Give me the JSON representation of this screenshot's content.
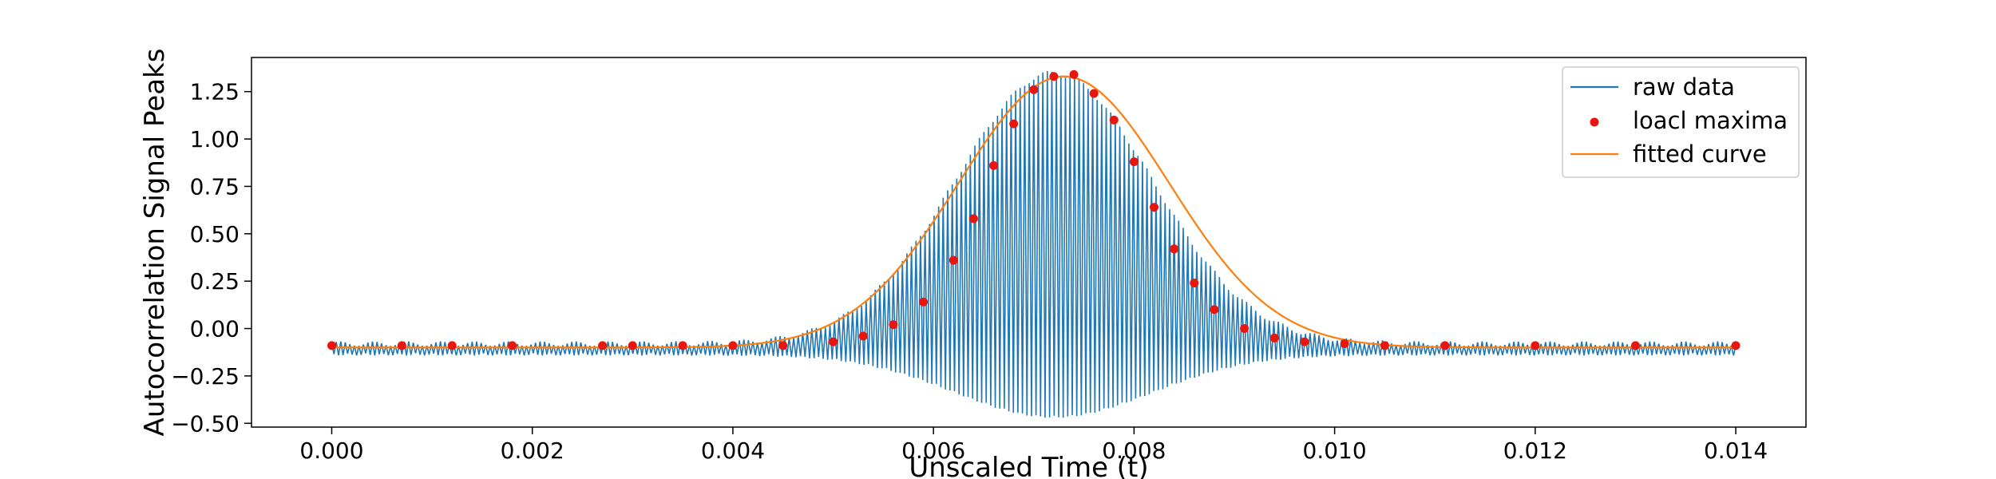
{
  "chart_data": {
    "type": "line",
    "title": "",
    "xlabel": "Unscaled Time (t)",
    "ylabel": "Autocorrelation Signal Peaks",
    "xlim": [
      -0.0008,
      0.0147
    ],
    "ylim": [
      -0.52,
      1.43
    ],
    "xticks": [
      0.0,
      0.002,
      0.004,
      0.006,
      0.008,
      0.01,
      0.012,
      0.014
    ],
    "xtick_labels": [
      "0.000",
      "0.002",
      "0.004",
      "0.006",
      "0.008",
      "0.010",
      "0.012",
      "0.014"
    ],
    "yticks": [
      -0.5,
      -0.25,
      0.0,
      0.25,
      0.5,
      0.75,
      1.0,
      1.25
    ],
    "ytick_labels": [
      "−0.50",
      "−0.25",
      "0.00",
      "0.25",
      "0.50",
      "0.75",
      "1.00",
      "1.25"
    ],
    "grid": false,
    "legend_position": "top-right",
    "series": [
      {
        "name": "raw data",
        "kind": "line",
        "color": "#1f77b4",
        "baseline": -0.1,
        "envelope_center": 0.0072,
        "upper_peak": 1.33,
        "lower_peak": -0.43,
        "t_start": 0.0,
        "t_end": 0.014
      },
      {
        "name": "loacl maxima",
        "kind": "scatter",
        "color": "#e8170e",
        "points": [
          [
            0.0,
            -0.09
          ],
          [
            0.0007,
            -0.09
          ],
          [
            0.0012,
            -0.09
          ],
          [
            0.0018,
            -0.09
          ],
          [
            0.0027,
            -0.09
          ],
          [
            0.003,
            -0.09
          ],
          [
            0.0035,
            -0.09
          ],
          [
            0.004,
            -0.09
          ],
          [
            0.0045,
            -0.09
          ],
          [
            0.005,
            -0.07
          ],
          [
            0.0053,
            -0.04
          ],
          [
            0.0056,
            0.02
          ],
          [
            0.0059,
            0.14
          ],
          [
            0.0062,
            0.36
          ],
          [
            0.0064,
            0.58
          ],
          [
            0.0066,
            0.86
          ],
          [
            0.0068,
            1.08
          ],
          [
            0.007,
            1.26
          ],
          [
            0.0072,
            1.33
          ],
          [
            0.0074,
            1.34
          ],
          [
            0.0076,
            1.24
          ],
          [
            0.0078,
            1.1
          ],
          [
            0.008,
            0.88
          ],
          [
            0.0082,
            0.64
          ],
          [
            0.0084,
            0.42
          ],
          [
            0.0086,
            0.24
          ],
          [
            0.0088,
            0.1
          ],
          [
            0.0091,
            0.0
          ],
          [
            0.0094,
            -0.05
          ],
          [
            0.0097,
            -0.07
          ],
          [
            0.0101,
            -0.08
          ],
          [
            0.0105,
            -0.09
          ],
          [
            0.0111,
            -0.09
          ],
          [
            0.012,
            -0.09
          ],
          [
            0.013,
            -0.09
          ],
          [
            0.014,
            -0.09
          ]
        ]
      },
      {
        "name": "fitted curve",
        "kind": "line",
        "color": "#ff7f0e",
        "model": "gaussian",
        "amplitude": 1.43,
        "center": 0.0073,
        "sigma": 0.00105,
        "offset": -0.1,
        "t_start": 0.0,
        "t_end": 0.014
      }
    ]
  }
}
